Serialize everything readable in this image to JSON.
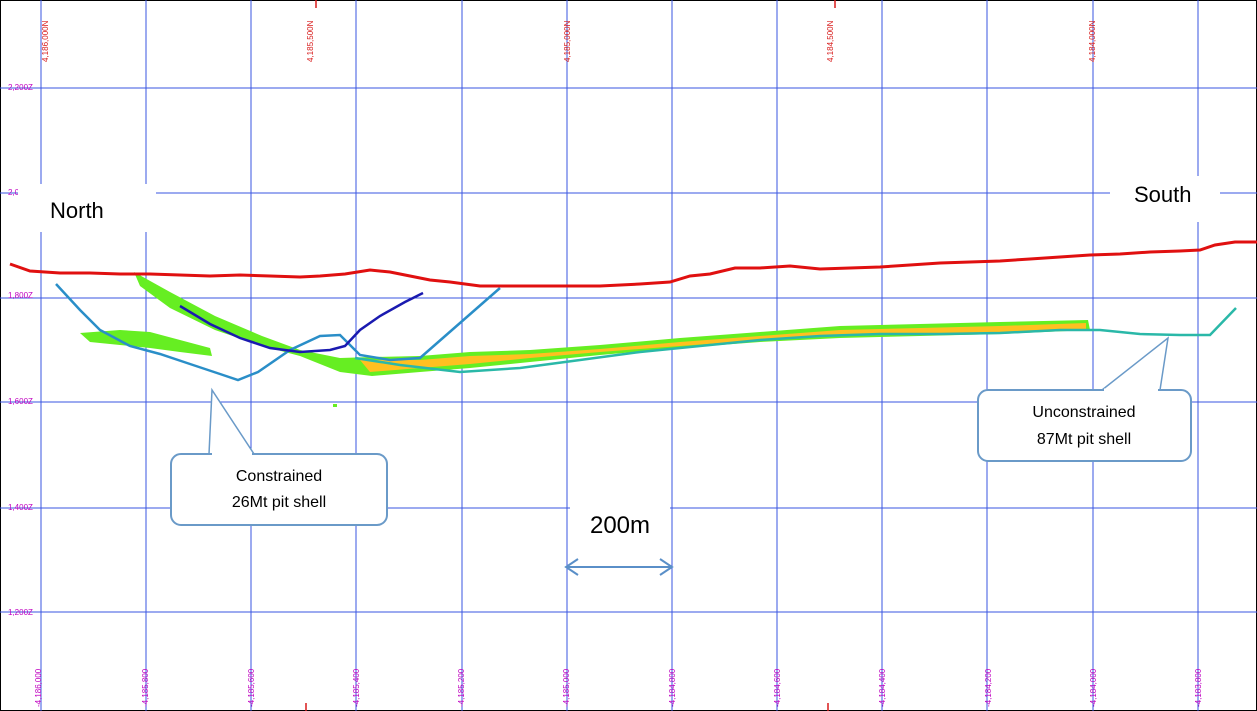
{
  "labels": {
    "north": "North",
    "south": "South",
    "scale": "200m"
  },
  "callouts": {
    "constrained": {
      "line1": "Constrained",
      "line2": "26Mt pit shell"
    },
    "unconstrained": {
      "line1": "Unconstrained",
      "line2": "87Mt pit shell"
    }
  },
  "ticks": {
    "top": [
      "4,186,000N",
      "4,185,500N",
      "4,185,000N",
      "4,184,500N",
      "4,184,000N"
    ],
    "bottom": [
      "-4,186,000",
      "-4,185,800",
      "-4,185,600",
      "-4,185,400",
      "-4,185,200",
      "-4,185,000",
      "-4,184,800",
      "-4,184,600",
      "-4,184,400",
      "-4,184,200",
      "-4,184,000",
      "-4,183,800"
    ],
    "z": [
      "2,200Z",
      "2,0",
      "1,800Z",
      "1,600Z",
      "1,400Z",
      "1,200Z"
    ]
  },
  "colors": {
    "grid": "#3a55e0",
    "topography": "#e01010",
    "constrained_shell": "#2a8ec8",
    "inner_shell": "#1a1ab0",
    "unconstrained_shell": "#2ab8a8",
    "ore_green": "#66ee22",
    "ore_orange": "#ffc020",
    "callout_border": "#6a9ac8",
    "tick_top": "#d81b1b",
    "tick_label": "#c000c0"
  }
}
